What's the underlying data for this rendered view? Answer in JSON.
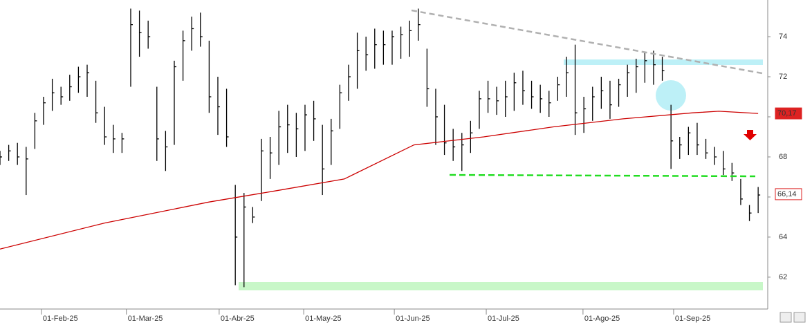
{
  "chart_data": {
    "type": "ohlc",
    "xlim": [
      0,
      176.2
    ],
    "ylim": [
      60.41,
      75.83
    ],
    "xticks": [
      {
        "value": 9.5,
        "label": "01-Feb-25"
      },
      {
        "value": 29,
        "label": "01-Mar-25"
      },
      {
        "value": 50.3,
        "label": "01-Abr-25"
      },
      {
        "value": 69.7,
        "label": "01-May-25"
      },
      {
        "value": 90.5,
        "label": "01-Jun-25"
      },
      {
        "value": 111.6,
        "label": "01-Jul-25"
      },
      {
        "value": 133.8,
        "label": "01-Ago-25"
      },
      {
        "value": 154.6,
        "label": "01-Sep-25"
      }
    ],
    "yticks": [
      62,
      64,
      66,
      68,
      70,
      72,
      74
    ],
    "color": "#000000",
    "x": [
      0,
      2,
      4,
      6,
      8,
      10,
      12,
      14,
      16,
      18,
      20,
      22,
      24,
      26,
      28,
      30,
      32,
      34,
      36,
      38,
      40,
      42,
      44,
      46,
      48,
      50,
      52,
      54,
      56,
      58,
      60,
      62,
      64,
      66,
      68,
      70,
      72,
      74,
      76,
      78,
      80,
      82,
      84,
      86,
      88,
      90,
      92,
      94,
      96,
      98,
      100,
      102,
      104,
      106,
      108,
      110,
      112,
      114,
      116,
      118,
      120,
      122,
      124,
      126,
      128,
      130,
      132,
      134,
      136,
      138,
      140,
      142,
      144,
      146,
      148,
      150,
      152,
      154,
      156,
      158,
      160,
      162,
      164,
      166,
      168,
      170,
      172,
      174
    ],
    "high": [
      68.3,
      68.6,
      68.7,
      68.5,
      70.2,
      71.0,
      71.9,
      71.5,
      72.1,
      72.5,
      72.6,
      71.8,
      70.5,
      69.6,
      69.2,
      75.4,
      75.3,
      74.8,
      71.5,
      69.3,
      72.8,
      74.3,
      75.0,
      75.2,
      73.8,
      72.0,
      71.4,
      66.6,
      66.2,
      65.5,
      68.9,
      69.0,
      70.3,
      70.6,
      70.2,
      70.6,
      70.8,
      69.6,
      69.9,
      71.6,
      72.6,
      74.2,
      74.0,
      74.4,
      74.3,
      74.3,
      74.5,
      74.8,
      75.4,
      73.4,
      71.4,
      70.6,
      69.4,
      69.2,
      69.8,
      71.3,
      71.8,
      71.5,
      71.8,
      72.2,
      72.3,
      71.8,
      71.6,
      71.3,
      72.0,
      73.0,
      73.6,
      71.0,
      71.5,
      72.0,
      71.8,
      71.9,
      72.6,
      72.9,
      73.2,
      73.3,
      73.0,
      70.6,
      69.0,
      69.5,
      69.7,
      68.9,
      68.5,
      68.3,
      67.7,
      66.9,
      65.6,
      66.5
    ],
    "low": [
      67.6,
      67.8,
      67.6,
      66.1,
      68.4,
      69.6,
      70.3,
      70.6,
      70.8,
      71.2,
      71.0,
      69.7,
      68.6,
      68.2,
      68.2,
      71.5,
      73.0,
      73.4,
      67.8,
      67.3,
      68.6,
      71.8,
      73.3,
      73.5,
      70.2,
      69.1,
      68.5,
      61.6,
      61.5,
      64.7,
      65.8,
      66.9,
      67.6,
      68.2,
      68.0,
      68.3,
      68.8,
      66.1,
      67.6,
      69.4,
      70.8,
      71.4,
      72.3,
      72.4,
      72.6,
      72.6,
      72.9,
      73.0,
      73.8,
      70.5,
      68.6,
      68.1,
      67.8,
      67.3,
      68.2,
      69.4,
      70.2,
      70.1,
      70.0,
      70.3,
      70.6,
      70.4,
      70.2,
      70.0,
      70.8,
      71.0,
      69.1,
      69.2,
      69.8,
      70.4,
      69.9,
      70.5,
      71.0,
      71.2,
      71.7,
      71.6,
      71.8,
      67.4,
      67.9,
      68.1,
      68.1,
      67.9,
      67.6,
      67.1,
      66.8,
      65.6,
      64.8,
      65.2
    ],
    "close": [
      68.0,
      68.3,
      68.0,
      67.9,
      69.8,
      70.7,
      71.2,
      71.0,
      71.5,
      72.0,
      72.2,
      70.2,
      69.0,
      68.9,
      68.9,
      74.6,
      74.2,
      74.0,
      68.9,
      68.5,
      72.5,
      73.8,
      74.4,
      74.0,
      71.0,
      70.5,
      69.0,
      64.0,
      65.5,
      65.0,
      68.3,
      68.2,
      69.5,
      69.6,
      69.4,
      70.1,
      69.9,
      67.4,
      69.3,
      71.2,
      72.0,
      73.3,
      73.1,
      73.6,
      73.6,
      74.0,
      74.1,
      74.3,
      74.6,
      71.4,
      70.0,
      68.7,
      68.5,
      68.6,
      69.2,
      70.9,
      70.9,
      70.8,
      71.0,
      71.7,
      71.3,
      71.0,
      70.9,
      70.7,
      71.6,
      72.2,
      70.2,
      70.4,
      71.0,
      71.3,
      70.6,
      71.6,
      72.2,
      72.5,
      72.8,
      72.6,
      72.3,
      68.8,
      68.6,
      69.2,
      68.6,
      68.2,
      68.0,
      67.4,
      67.2,
      65.9,
      65.2,
      66.1
    ],
    "moving_average": {
      "color": "#cc0000",
      "x": [
        0,
        24,
        48,
        63,
        79,
        95,
        111,
        127,
        143,
        159,
        165,
        174
      ],
      "values": [
        63.4,
        64.7,
        65.75,
        66.3,
        66.9,
        68.6,
        69.0,
        69.5,
        69.9,
        70.2,
        70.28,
        70.17
      ]
    },
    "price_labels": [
      {
        "value": 70.17,
        "label": "70,17"
      },
      {
        "value": 66.14,
        "label": "66,14"
      }
    ]
  }
}
